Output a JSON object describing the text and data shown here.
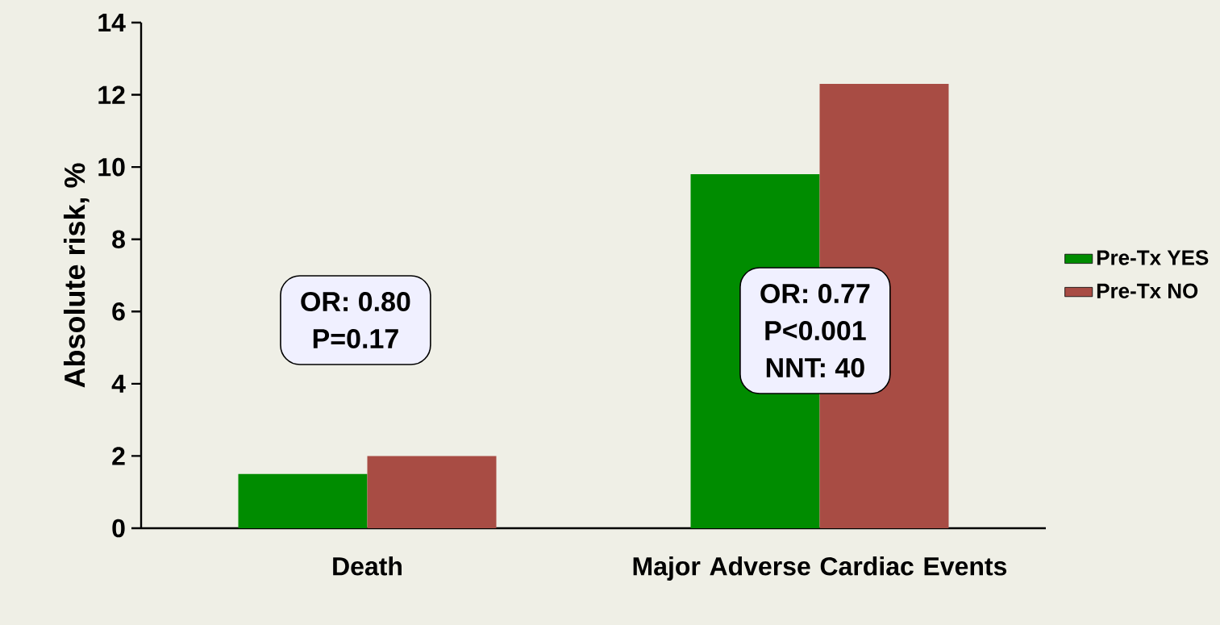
{
  "chart_data": {
    "type": "bar",
    "ylabel": "Absolute risk, %",
    "categories": [
      "Death",
      "Major Adverse Cardiac Events"
    ],
    "series": [
      {
        "name": "Pre-Tx YES",
        "color": "#008c00",
        "values": [
          1.5,
          9.8
        ]
      },
      {
        "name": "Pre-Tx NO",
        "color": "#a84c44",
        "values": [
          2.0,
          12.3
        ]
      }
    ],
    "ylim": [
      0,
      14
    ],
    "yticks": [
      0,
      2,
      4,
      6,
      8,
      10,
      12,
      14
    ],
    "grid": false,
    "legend": "right",
    "annotations": [
      "OR: 0.80",
      "P=0.17",
      "OR: 0.77",
      "P<0.001",
      "NNT: 40"
    ]
  }
}
